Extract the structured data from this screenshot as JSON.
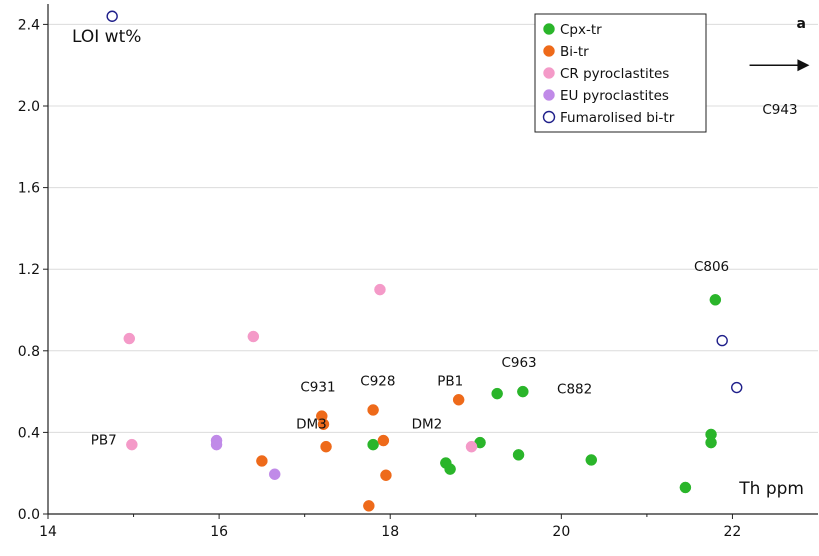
{
  "chart_data": {
    "type": "scatter",
    "panel_label": "a",
    "xlabel": "Th ppm",
    "ylabel": "LOI wt%",
    "xlim": [
      14,
      23
    ],
    "ylim": [
      0,
      2.5
    ],
    "x_ticks": [
      "14",
      "16",
      "18",
      "20",
      "22"
    ],
    "y_ticks": [
      "0.0",
      "0.4",
      "0.8",
      "1.2",
      "1.6",
      "2.0",
      "2.4"
    ],
    "legend_position": "top-right",
    "series": [
      {
        "name": "Cpx-tr",
        "color": "#2ab52a",
        "marker": "filled-circle",
        "points": [
          {
            "x": 17.8,
            "y": 0.34
          },
          {
            "x": 18.65,
            "y": 0.25
          },
          {
            "x": 18.7,
            "y": 0.22
          },
          {
            "x": 19.05,
            "y": 0.35
          },
          {
            "x": 19.25,
            "y": 0.59
          },
          {
            "x": 19.5,
            "y": 0.29
          },
          {
            "x": 19.55,
            "y": 0.6
          },
          {
            "x": 20.35,
            "y": 0.265
          },
          {
            "x": 21.45,
            "y": 0.13
          },
          {
            "x": 21.75,
            "y": 0.39
          },
          {
            "x": 21.75,
            "y": 0.35
          },
          {
            "x": 21.8,
            "y": 1.05
          }
        ]
      },
      {
        "name": "Bi-tr",
        "color": "#ee6a1a",
        "marker": "filled-circle",
        "points": [
          {
            "x": 16.5,
            "y": 0.26
          },
          {
            "x": 17.2,
            "y": 0.48
          },
          {
            "x": 17.22,
            "y": 0.44
          },
          {
            "x": 17.25,
            "y": 0.33
          },
          {
            "x": 17.75,
            "y": 0.04
          },
          {
            "x": 17.8,
            "y": 0.51
          },
          {
            "x": 17.92,
            "y": 0.36
          },
          {
            "x": 17.95,
            "y": 0.19
          },
          {
            "x": 18.8,
            "y": 0.56
          }
        ]
      },
      {
        "name": "CR pyroclastites",
        "color": "#f49ac8",
        "marker": "filled-circle",
        "points": [
          {
            "x": 14.95,
            "y": 0.86
          },
          {
            "x": 14.98,
            "y": 0.34
          },
          {
            "x": 16.4,
            "y": 0.87
          },
          {
            "x": 17.88,
            "y": 1.1
          },
          {
            "x": 18.95,
            "y": 0.33
          }
        ]
      },
      {
        "name": "EU pyroclastites",
        "color": "#c08ae8",
        "marker": "filled-circle",
        "points": [
          {
            "x": 15.97,
            "y": 0.36
          },
          {
            "x": 15.97,
            "y": 0.34
          },
          {
            "x": 16.65,
            "y": 0.195
          }
        ]
      },
      {
        "name": "Fumarolised bi-tr",
        "color": "#1f1f8a",
        "marker": "open-circle",
        "points": [
          {
            "x": 14.75,
            "y": 2.44
          },
          {
            "x": 21.88,
            "y": 0.85
          },
          {
            "x": 22.05,
            "y": 0.62
          }
        ]
      }
    ],
    "annotations": [
      {
        "text": "PB7",
        "x": 14.5,
        "y": 0.34
      },
      {
        "text": "C931",
        "x": 16.95,
        "y": 0.6
      },
      {
        "text": "DM3",
        "x": 16.9,
        "y": 0.42
      },
      {
        "text": "C928",
        "x": 17.65,
        "y": 0.63
      },
      {
        "text": "DM2",
        "x": 18.25,
        "y": 0.42
      },
      {
        "text": "PB1",
        "x": 18.55,
        "y": 0.63
      },
      {
        "text": "C963",
        "x": 19.3,
        "y": 0.72
      },
      {
        "text": "C882",
        "x": 19.95,
        "y": 0.59
      },
      {
        "text": "C806",
        "x": 21.55,
        "y": 1.19
      },
      {
        "text": "C943",
        "x": 22.35,
        "y": 1.96
      }
    ],
    "offscale_arrow": {
      "from_x": 22.2,
      "to_x": 22.9,
      "y": 2.2
    }
  }
}
